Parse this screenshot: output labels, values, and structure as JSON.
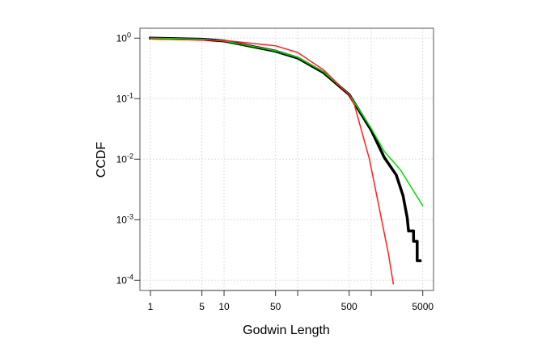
{
  "chart_data": {
    "type": "line",
    "xlabel": "Godwin Length",
    "ylabel": "CCDF",
    "xscale": "log",
    "yscale": "log",
    "xlim": [
      1,
      5000
    ],
    "ylim": [
      0.0001,
      1
    ],
    "x_ticks": [
      1,
      5,
      10,
      50,
      100,
      500,
      1000,
      5000
    ],
    "x_tick_labels": [
      "1",
      "5",
      "10",
      "50",
      "",
      "500",
      "",
      "5000"
    ],
    "y_ticks": [
      1,
      0.1,
      0.01,
      0.001,
      0.0001
    ],
    "y_tick_labels": [
      {
        "base": "10",
        "exp": "0"
      },
      {
        "base": "10",
        "exp": "-1"
      },
      {
        "base": "10",
        "exp": "-2"
      },
      {
        "base": "10",
        "exp": "-3"
      },
      {
        "base": "10",
        "exp": "-4"
      }
    ],
    "grid": true,
    "legend": "none",
    "series": [
      {
        "color": "#000000",
        "style": "step-thick",
        "x": [
          1,
          5,
          10,
          50,
          100,
          224,
          500,
          1000,
          1500,
          2180,
          2700,
          3080,
          3200,
          3750,
          3750,
          4200,
          4200,
          4600
        ],
        "y": [
          1,
          0.96,
          0.9,
          0.61,
          0.47,
          0.27,
          0.117,
          0.03,
          0.0107,
          0.0055,
          0.0025,
          0.00107,
          0.00065,
          0.00065,
          0.00044,
          0.00044,
          0.00021,
          0.00021
        ]
      },
      {
        "color": "#00dd00",
        "style": "line",
        "x": [
          1,
          5,
          10,
          50,
          100,
          224,
          500,
          1000,
          1500,
          2500,
          5000
        ],
        "y": [
          1,
          0.96,
          0.9,
          0.62,
          0.48,
          0.28,
          0.118,
          0.032,
          0.0135,
          0.0066,
          0.0017
        ]
      },
      {
        "color": "#ff2020",
        "style": "line",
        "x": [
          1,
          10,
          50,
          100,
          224,
          500,
          590,
          940,
          1320,
          1700,
          1990
        ],
        "y": [
          0.97,
          0.92,
          0.75,
          0.58,
          0.3,
          0.117,
          0.079,
          0.0102,
          0.0013,
          0.00028,
          8.7e-05
        ]
      }
    ]
  }
}
